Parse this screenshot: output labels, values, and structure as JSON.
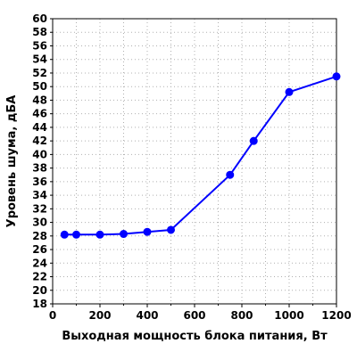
{
  "chart_data": {
    "type": "line",
    "title": "",
    "xlabel": "Выходная мощность блока питания, Вт",
    "ylabel": "Уровень шума, дБА",
    "xlim": [
      0,
      1200
    ],
    "ylim": [
      18,
      60
    ],
    "x_ticks": [
      0,
      200,
      400,
      600,
      800,
      1000,
      1200
    ],
    "y_ticks": [
      18,
      20,
      22,
      24,
      26,
      28,
      30,
      32,
      34,
      36,
      38,
      40,
      42,
      44,
      46,
      48,
      50,
      52,
      54,
      56,
      58,
      60
    ],
    "x_minor_step": 100,
    "grid": "dotted",
    "legend": "none",
    "series": [
      {
        "color": "#0000ff",
        "marker": "circle",
        "x": [
          50,
          100,
          200,
          300,
          400,
          500,
          750,
          850,
          1000,
          1200
        ],
        "y": [
          28.2,
          28.2,
          28.2,
          28.3,
          28.6,
          28.9,
          37.0,
          42.0,
          49.2,
          51.5
        ]
      }
    ]
  }
}
